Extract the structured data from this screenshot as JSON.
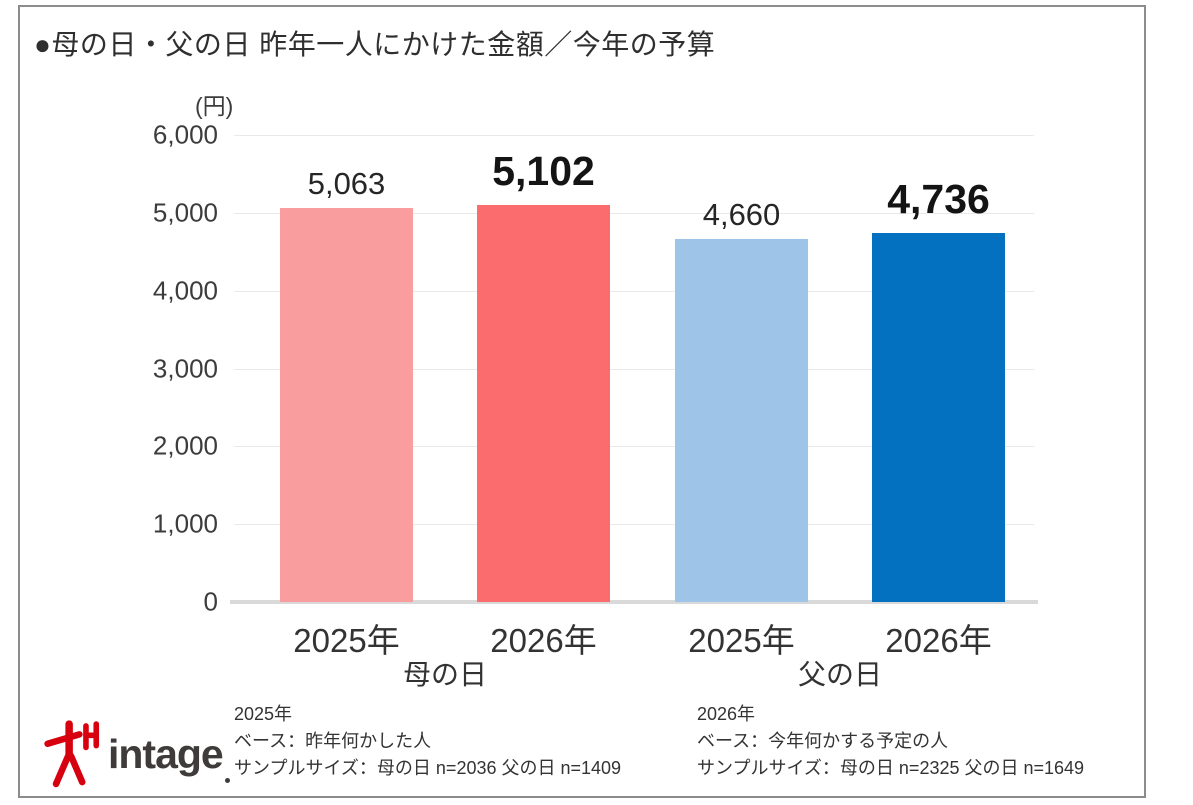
{
  "title": "●母の日・父の日 昨年一人にかけた金額／今年の予算",
  "chart_data": {
    "type": "bar",
    "title": "母の日・父の日 昨年一人にかけた金額／今年の予算",
    "unit_label": "(円)",
    "ylim": [
      0,
      6000
    ],
    "yticks": [
      0,
      1000,
      2000,
      3000,
      4000,
      5000,
      6000
    ],
    "grid": true,
    "legend": "none",
    "groups": [
      {
        "label": "母の日",
        "bars": [
          {
            "category": "2025年",
            "value": 5063,
            "display": "5,063",
            "color": "#FA9D9E",
            "emphasis": false
          },
          {
            "category": "2026年",
            "value": 5102,
            "display": "5,102",
            "color": "#FB6C6E",
            "emphasis": true
          }
        ]
      },
      {
        "label": "父の日",
        "bars": [
          {
            "category": "2025年",
            "value": 4660,
            "display": "4,660",
            "color": "#9EC4E8",
            "emphasis": false
          },
          {
            "category": "2026年",
            "value": 4736,
            "display": "4,736",
            "color": "#0470C0",
            "emphasis": true
          }
        ]
      }
    ]
  },
  "footnotes": {
    "left": {
      "line1": "2025年",
      "line2": "ベース：昨年何かした人",
      "line3": "サンプルサイズ：母の日 n=2036 父の日 n=1409"
    },
    "right": {
      "line1": "2026年",
      "line2": "ベース：今年何かする予定の人",
      "line3": "サンプルサイズ：母の日 n=2325 父の日 n=1649"
    }
  },
  "logo": {
    "brand": "intage"
  }
}
